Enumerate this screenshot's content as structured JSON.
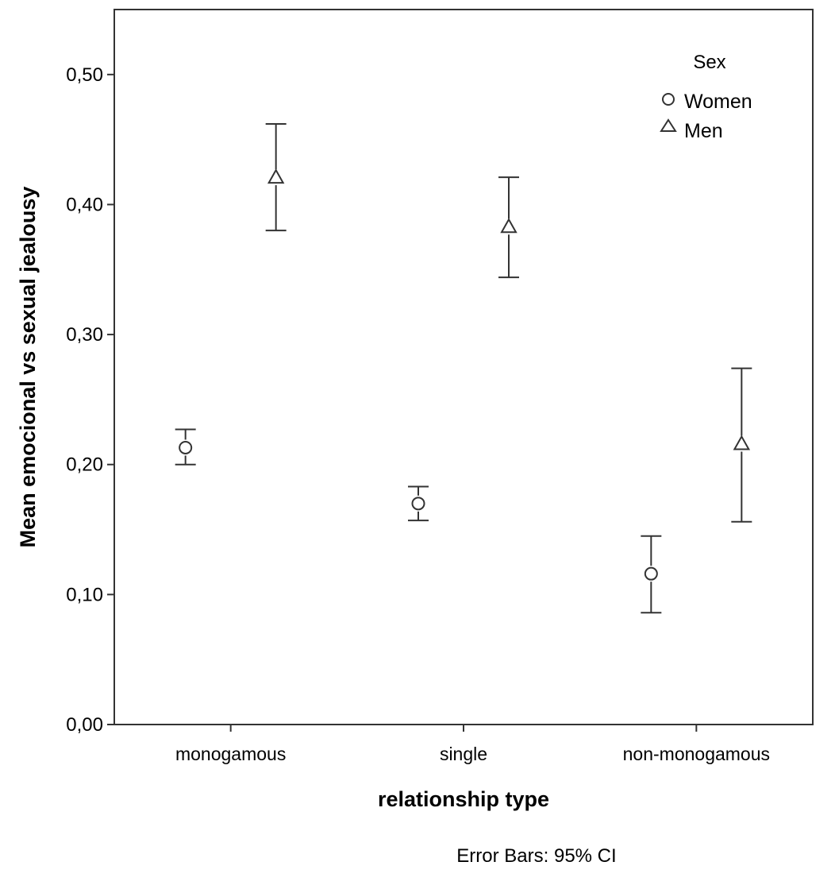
{
  "chart_data": {
    "type": "errorbar",
    "xlabel": "relationship type",
    "ylabel": "Mean emocional vs sexual jealousy",
    "categories": [
      "monogamous",
      "single",
      "non-monogamous"
    ],
    "ylim": [
      0,
      0.55
    ],
    "yticks": [
      {
        "value": 0.0,
        "label": "0,00"
      },
      {
        "value": 0.1,
        "label": "0,10"
      },
      {
        "value": 0.2,
        "label": "0,20"
      },
      {
        "value": 0.3,
        "label": "0,30"
      },
      {
        "value": 0.4,
        "label": "0,40"
      },
      {
        "value": 0.5,
        "label": "0,50"
      }
    ],
    "legend": {
      "title": "Sex",
      "position": "top-right"
    },
    "series": [
      {
        "name": "Women",
        "marker": "circle",
        "mean": [
          0.213,
          0.17,
          0.116
        ],
        "lower": [
          0.2,
          0.157,
          0.086
        ],
        "upper": [
          0.227,
          0.183,
          0.145
        ]
      },
      {
        "name": "Men",
        "marker": "triangle",
        "mean": [
          0.421,
          0.383,
          0.216
        ],
        "lower": [
          0.38,
          0.344,
          0.156
        ],
        "upper": [
          0.462,
          0.421,
          0.274
        ]
      }
    ],
    "grid": false,
    "footnote": "Error Bars: 95% CI",
    "colors": {
      "line": "#333333",
      "marker": "#333333",
      "frame": "#333333"
    }
  }
}
